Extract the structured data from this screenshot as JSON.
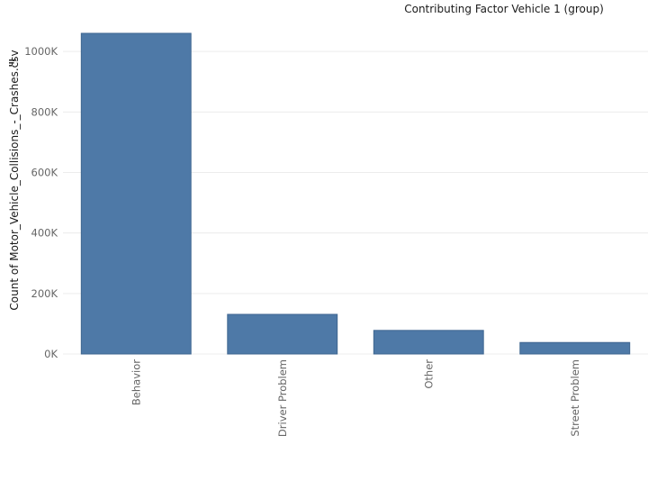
{
  "chart_data": {
    "type": "bar",
    "column_header": "Contributing Factor Vehicle 1 (group)",
    "ylabel": "Count of Motor_Vehicle_Collisions_-_Crashes.csv",
    "categories": [
      "Behavior",
      "Driver Problem",
      "Other",
      "Street Problem"
    ],
    "values": [
      1060000,
      131000,
      78000,
      38000
    ],
    "ylim": [
      0,
      1060000
    ],
    "yticks": [
      0,
      200000,
      400000,
      600000,
      800000,
      1000000
    ],
    "ytick_labels": [
      "0K",
      "200K",
      "400K",
      "600K",
      "800K",
      "1000K"
    ],
    "grid": true,
    "colors": {
      "bar": "#4e79a7",
      "bar_border": "#3f6690",
      "grid": "#ececec"
    },
    "icons": {
      "sort": "sort-descending-icon"
    }
  }
}
